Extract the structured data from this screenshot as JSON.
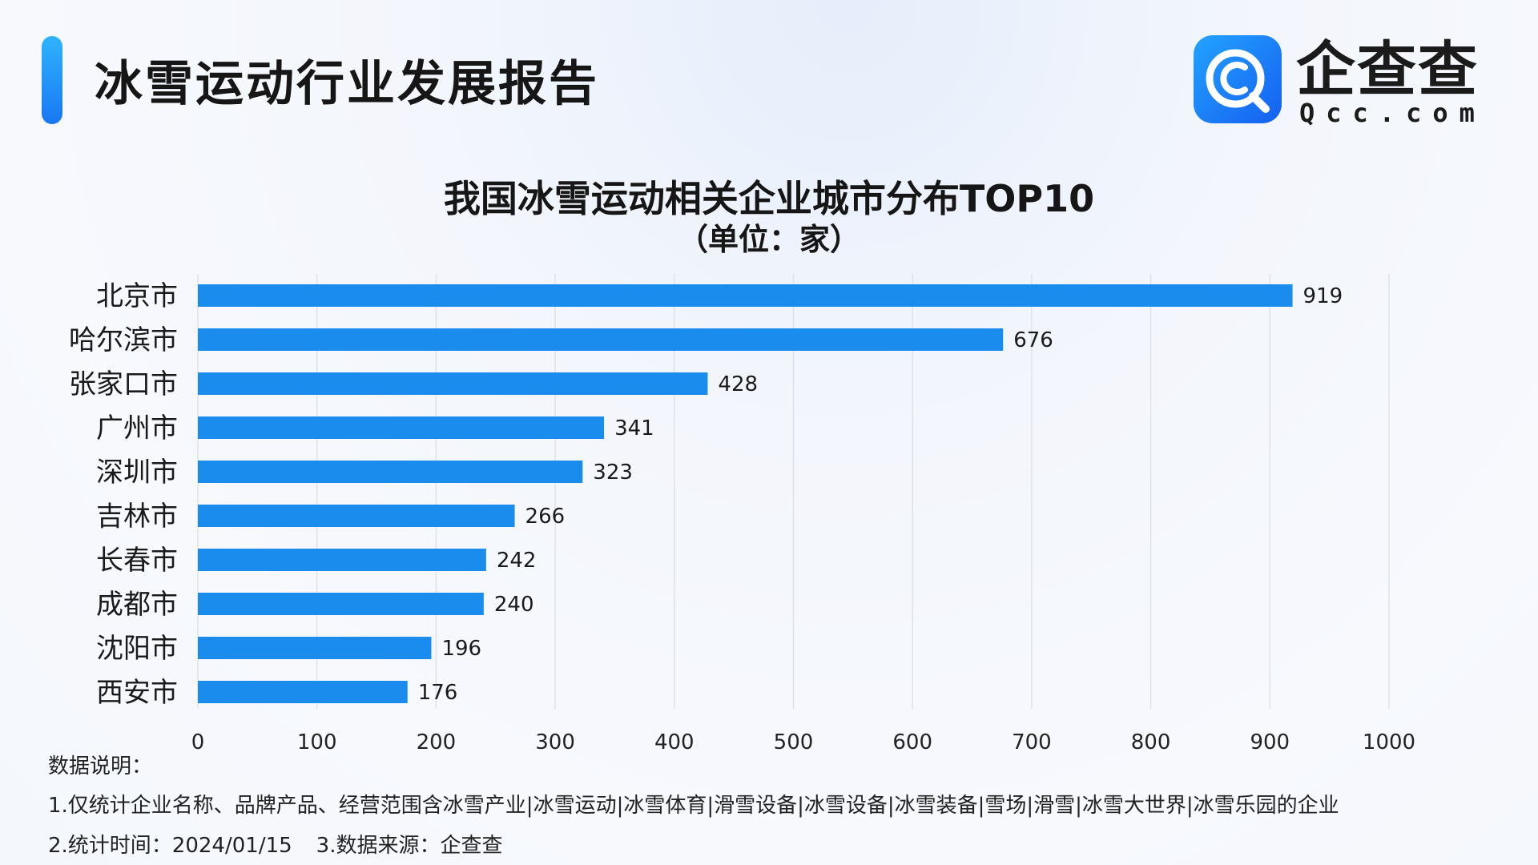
{
  "header": {
    "title": "冰雪运动行业发展报告",
    "accent_color": "#1a8cff"
  },
  "logo": {
    "name": "企查查",
    "domain": "Qcc.com",
    "icon": "qcc-logo-icon",
    "color": "#1a7ff5"
  },
  "chart_data": {
    "type": "bar",
    "orientation": "horizontal",
    "title": "我国冰雪运动相关企业城市分布TOP10",
    "subtitle": "（单位：家）",
    "categories": [
      "北京市",
      "哈尔滨市",
      "张家口市",
      "广州市",
      "深圳市",
      "吉林市",
      "长春市",
      "成都市",
      "沈阳市",
      "西安市"
    ],
    "values": [
      919,
      676,
      428,
      341,
      323,
      266,
      242,
      240,
      196,
      176
    ],
    "xlim": [
      0,
      1000
    ],
    "xticks": [
      0,
      100,
      200,
      300,
      400,
      500,
      600,
      700,
      800,
      900,
      1000
    ],
    "grid": true,
    "bar_color": "#1a8cee",
    "data_labels": true
  },
  "notes": {
    "heading": "数据说明：",
    "line1": "1.仅统计企业名称、品牌产品、经营范围含冰雪产业|冰雪运动|冰雪体育|滑雪设备|冰雪设备|冰雪装备|雪场|滑雪|冰雪大世界|冰雪乐园的企业",
    "time": "2.统计时间：2024/01/15",
    "source": "3.数据来源：企查查"
  }
}
